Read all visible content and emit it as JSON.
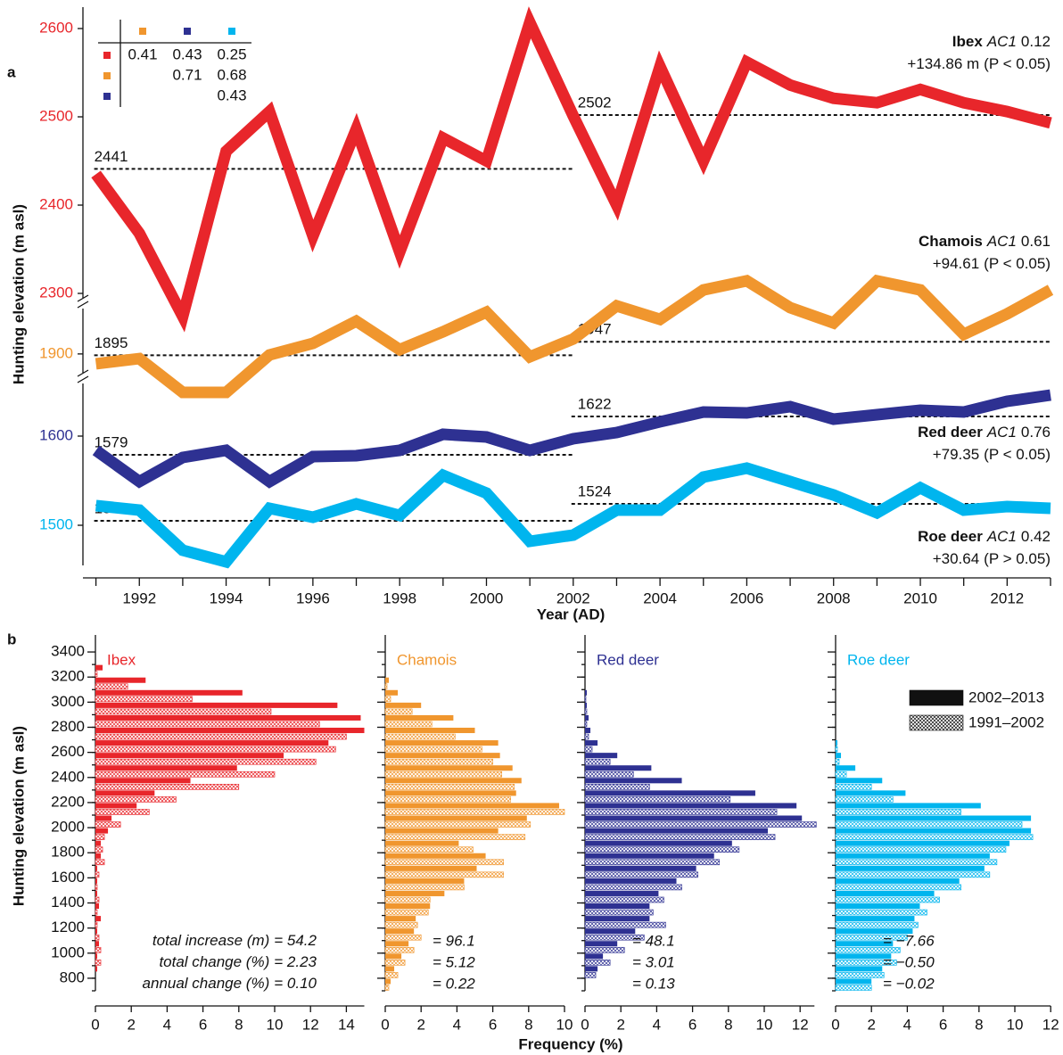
{
  "chart_data": [
    {
      "type": "line",
      "panel": "a",
      "ylabel": "Hunting elevation (m asl)",
      "xlabel": "Year (AD)",
      "x": [
        1991,
        1992,
        1993,
        1994,
        1995,
        1996,
        1997,
        1998,
        1999,
        2000,
        2001,
        2002,
        2003,
        2004,
        2005,
        2006,
        2007,
        2008,
        2009,
        2010,
        2011,
        2012,
        2013
      ],
      "xlim": [
        1990.7,
        2013
      ],
      "xticks": [
        1992,
        1994,
        1996,
        1998,
        2000,
        2002,
        2004,
        2006,
        2008,
        2010,
        2012
      ],
      "mean_periods": [
        [
          1991,
          2002
        ],
        [
          2002,
          2013
        ]
      ],
      "ac1_label": "AC1",
      "segments": [
        {
          "ylim": [
            2250,
            2620
          ],
          "yticks": [
            2300,
            2400,
            2500,
            2600
          ],
          "ytick_colors": [
            "#e8262b",
            "#e8262b",
            "#e8262b",
            "#e8262b"
          ],
          "series": [
            {
              "name": "Ibex",
              "color": "#e8262b",
              "values": [
                2435,
                2368,
                2274,
                2461,
                2506,
                2365,
                2486,
                2347,
                2476,
                2450,
                2607,
                2501,
                2400,
                2557,
                2450,
                2562,
                2536,
                2521,
                2516,
                2531,
                2516,
                2506,
                2493
              ],
              "means": [
                2441,
                2502
              ],
              "ac1": 0.12,
              "change": "+134.86 m",
              "p": "(P < 0.05)"
            }
          ]
        },
        {
          "ylim": [
            1720,
            2200
          ],
          "yticks": [
            1900
          ],
          "ytick_colors": [
            "#f0962e"
          ],
          "series": [
            {
              "name": "Chamois",
              "color": "#f0962e",
              "values": [
                1862,
                1882,
                1751,
                1751,
                1896,
                1941,
                2027,
                1917,
                1986,
                2062,
                1889,
                1958,
                2086,
                2034,
                2148,
                2183,
                2079,
                2020,
                2183,
                2148,
                1976,
                2055,
                2148
              ],
              "means": [
                1895,
                1947
              ],
              "ac1": 0.61,
              "change": "+94.61",
              "p": "(P < 0.05)"
            }
          ]
        },
        {
          "ylim": [
            1440,
            1660
          ],
          "yticks": [
            1500,
            1600
          ],
          "ytick_colors": [
            "#00b5ee",
            "#2e3192"
          ],
          "series": [
            {
              "name": "Red deer",
              "color": "#2e3192",
              "values": [
                1584,
                1549,
                1576,
                1584,
                1549,
                1577,
                1578,
                1584,
                1602,
                1599,
                1584,
                1597,
                1604,
                1616,
                1627,
                1626,
                1633,
                1619,
                1624,
                1629,
                1627,
                1639,
                1646
              ],
              "means": [
                1579,
                1622
              ],
              "ac1": 0.76,
              "change": "+79.35",
              "p": "(P < 0.05)"
            },
            {
              "name": "Roe deer",
              "color": "#00b5ee",
              "values": [
                1522,
                1517,
                1472,
                1459,
                1519,
                1509,
                1524,
                1511,
                1556,
                1536,
                1482,
                1489,
                1517,
                1517,
                1554,
                1564,
                1549,
                1534,
                1514,
                1542,
                1517,
                1521,
                1519
              ],
              "means": [
                1505,
                1524
              ],
              "ac1": 0.42,
              "change": "+30.64",
              "p": "(P > 0.05)"
            }
          ]
        }
      ],
      "correlations": [
        [
          0.41,
          0.43,
          0.25
        ],
        [
          null,
          0.71,
          0.68
        ],
        [
          null,
          null,
          0.43
        ]
      ]
    },
    {
      "type": "histogram",
      "panel": "b",
      "ylabel": "Hunting elevation (m asl)",
      "xlabel": "Frequency (%)",
      "bins": [
        700,
        800,
        900,
        1000,
        1100,
        1200,
        1300,
        1400,
        1500,
        1600,
        1700,
        1800,
        1900,
        2000,
        2100,
        2200,
        2300,
        2400,
        2500,
        2600,
        2700,
        2800,
        2900,
        3000,
        3100,
        3200,
        3300
      ],
      "ylim": [
        700,
        3500
      ],
      "yticks": [
        800,
        1000,
        1200,
        1400,
        1600,
        1800,
        2000,
        2200,
        2400,
        2600,
        2800,
        3000,
        3200,
        3400
      ],
      "periods": [
        "2002–2013",
        "1991–2002"
      ],
      "stat_labels": [
        "total increase (m)",
        "total change (%)",
        "annual change (%)"
      ],
      "panels": [
        {
          "name": "Ibex",
          "color": "#e8262b",
          "xlim": [
            0,
            15
          ],
          "xticks": [
            0,
            2,
            4,
            6,
            8,
            10,
            12,
            14
          ],
          "series": [
            {
              "values": [
                0,
                0.1,
                0.1,
                0.2,
                0.1,
                0.3,
                0.2,
                0.1,
                0.1,
                0.1,
                0.3,
                0.3,
                0.7,
                0.9,
                2.3,
                3.3,
                5.3,
                7.9,
                10.5,
                13.0,
                15.0,
                14.8,
                13.5,
                8.2,
                2.8,
                0.4
              ]
            },
            {
              "values": [
                0,
                0,
                0.3,
                0.3,
                0.2,
                0.1,
                0.1,
                0.2,
                0.1,
                0.2,
                0.5,
                0.4,
                0.5,
                1.4,
                3.0,
                4.5,
                8.0,
                10.0,
                12.3,
                13.4,
                14.0,
                12.5,
                9.8,
                5.4,
                1.8,
                0.1
              ]
            }
          ],
          "stats": [
            "= 54.2",
            "= 2.23",
            "= 0.10"
          ]
        },
        {
          "name": "Chamois",
          "color": "#f0962e",
          "xlim": [
            0,
            10
          ],
          "xticks": [
            0,
            2,
            4,
            6,
            8,
            10
          ],
          "series": [
            {
              "values": [
                0.3,
                0.5,
                0.9,
                1.3,
                1.6,
                1.7,
                2.5,
                3.3,
                4.4,
                5.1,
                5.6,
                4.1,
                6.3,
                7.9,
                9.7,
                7.3,
                7.6,
                7.1,
                6.4,
                6.3,
                5.0,
                3.8,
                2.0,
                0.7,
                0.2,
                0
              ]
            },
            {
              "values": [
                0.2,
                0.7,
                1.1,
                1.6,
                2.0,
                1.8,
                2.4,
                2.5,
                4.4,
                6.6,
                6.6,
                4.9,
                7.8,
                8.1,
                10.0,
                7.0,
                7.2,
                6.5,
                6.0,
                5.4,
                3.9,
                2.6,
                1.5,
                0.3,
                0.1,
                0
              ]
            }
          ],
          "stats": [
            "= 96.1",
            "= 5.12",
            "= 0.22"
          ]
        },
        {
          "name": "Red deer",
          "color": "#2e3192",
          "xlim": [
            0,
            12.8
          ],
          "xticks": [
            0,
            2,
            4,
            6,
            8,
            10,
            12
          ],
          "series": [
            {
              "values": [
                0,
                0.7,
                1.0,
                1.8,
                2.8,
                3.6,
                3.6,
                4.1,
                5.1,
                6.2,
                7.2,
                8.2,
                10.2,
                12.1,
                11.8,
                9.5,
                5.4,
                3.7,
                1.8,
                0.7,
                0.3,
                0.2,
                0.1,
                0.1,
                0,
                0
              ]
            },
            {
              "values": [
                0,
                0.6,
                1.4,
                2.2,
                3.3,
                4.5,
                3.8,
                4.4,
                5.4,
                6.3,
                7.5,
                8.6,
                10.6,
                12.9,
                10.7,
                8.1,
                3.6,
                2.7,
                1.4,
                0.4,
                0.2,
                0.1,
                0.1,
                0.05,
                0,
                0
              ]
            }
          ],
          "stats": [
            "= 48.1",
            "= 3.01",
            "= 0.13"
          ]
        },
        {
          "name": "Roe deer",
          "color": "#00b5ee",
          "xlim": [
            0,
            12
          ],
          "xticks": [
            0,
            2,
            4,
            6,
            8,
            10,
            12
          ],
          "series": [
            {
              "values": [
                2.0,
                2.6,
                3.1,
                3.2,
                4.3,
                4.4,
                4.7,
                5.5,
                6.9,
                8.3,
                8.6,
                9.7,
                10.9,
                10.9,
                8.1,
                3.9,
                2.6,
                1.1,
                0.3,
                0.1,
                0,
                0,
                0,
                0,
                0,
                0
              ]
            },
            {
              "values": [
                2.0,
                2.7,
                3.4,
                3.6,
                4.0,
                4.6,
                5.1,
                5.8,
                7.0,
                8.6,
                9.0,
                9.5,
                11.0,
                10.4,
                7.0,
                3.2,
                2.0,
                0.6,
                0.2,
                0.1,
                0,
                0,
                0,
                0,
                0,
                0
              ]
            }
          ],
          "stats": [
            "= −7.66",
            "= −0.50",
            "= −0.02"
          ]
        }
      ]
    }
  ]
}
